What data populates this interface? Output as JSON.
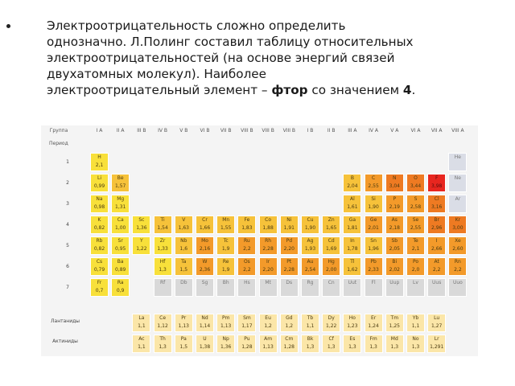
{
  "bullet": {
    "line1": "Электроотрицательность сложно определить",
    "line2": "однозначно. Л.Полинг составил таблицу относительных",
    "line3": "электроотрицательностей (на основе энергий связей",
    "line4": "двухатомных молекул). Наиболее",
    "line5_prefix": "электроотрицательный элемент – ",
    "line5_bold": "фтор",
    "line5_mid": " со значением ",
    "line5_num": "4",
    "line5_end": "."
  },
  "table": {
    "group_label": "Группа",
    "period_label": "Период",
    "columns": [
      "I A",
      "II A",
      "III B",
      "IV B",
      "V B",
      "VI B",
      "VII B",
      "VIII B",
      "VIII B",
      "VIII B",
      "I B",
      "II B",
      "III A",
      "IV A",
      "V A",
      "VI A",
      "VII A",
      "VIII A"
    ],
    "rows": [
      "1",
      "2",
      "3",
      "4",
      "5",
      "6",
      "7"
    ],
    "lanthanides_label": "Лантаниды",
    "actinides_label": "Актиниды"
  },
  "elements": [
    {
      "sym": "H",
      "val": "2,1",
      "color": "c-y"
    },
    {
      "sym": "He",
      "val": "",
      "color": "c-bl"
    },
    {
      "sym": "Li",
      "val": "0,99",
      "color": "c-y"
    },
    {
      "sym": "Be",
      "val": "1,57",
      "color": "c-yo"
    },
    {
      "sym": "B",
      "val": "2,04",
      "color": "c-yo"
    },
    {
      "sym": "C",
      "val": "2,55",
      "color": "c-o"
    },
    {
      "sym": "N",
      "val": "3,04",
      "color": "c-do"
    },
    {
      "sym": "O",
      "val": "3,44",
      "color": "c-do"
    },
    {
      "sym": "F",
      "val": "3,98",
      "color": "c-r"
    },
    {
      "sym": "Ne",
      "val": "",
      "color": "c-bl"
    },
    {
      "sym": "Na",
      "val": "0,98",
      "color": "c-y"
    },
    {
      "sym": "Mg",
      "val": "1,31",
      "color": "c-y"
    },
    {
      "sym": "Al",
      "val": "1,61",
      "color": "c-yo"
    },
    {
      "sym": "Si",
      "val": "1,90",
      "color": "c-yo"
    },
    {
      "sym": "P",
      "val": "2,19",
      "color": "c-o"
    },
    {
      "sym": "S",
      "val": "2,58",
      "color": "c-o"
    },
    {
      "sym": "Cl",
      "val": "3,16",
      "color": "c-do"
    },
    {
      "sym": "Ar",
      "val": "",
      "color": "c-bl"
    },
    {
      "sym": "K",
      "val": "0,82",
      "color": "c-y"
    },
    {
      "sym": "Ca",
      "val": "1,00",
      "color": "c-y"
    },
    {
      "sym": "Sc",
      "val": "1,36",
      "color": "c-y"
    },
    {
      "sym": "Ti",
      "val": "1,54",
      "color": "c-yo"
    },
    {
      "sym": "V",
      "val": "1,63",
      "color": "c-yo"
    },
    {
      "sym": "Cr",
      "val": "1,66",
      "color": "c-yo"
    },
    {
      "sym": "Mn",
      "val": "1,55",
      "color": "c-yo"
    },
    {
      "sym": "Fe",
      "val": "1,83",
      "color": "c-yo"
    },
    {
      "sym": "Co",
      "val": "1,88",
      "color": "c-yo"
    },
    {
      "sym": "Ni",
      "val": "1,91",
      "color": "c-yo"
    },
    {
      "sym": "Cu",
      "val": "1,90",
      "color": "c-yo"
    },
    {
      "sym": "Zn",
      "val": "1,65",
      "color": "c-yo"
    },
    {
      "sym": "Ga",
      "val": "1,81",
      "color": "c-yo"
    },
    {
      "sym": "Ge",
      "val": "2,01",
      "color": "c-o"
    },
    {
      "sym": "As",
      "val": "2,18",
      "color": "c-o"
    },
    {
      "sym": "Se",
      "val": "2,55",
      "color": "c-o"
    },
    {
      "sym": "Br",
      "val": "2,96",
      "color": "c-do"
    },
    {
      "sym": "Kr",
      "val": "3,00",
      "color": "c-do"
    },
    {
      "sym": "Rb",
      "val": "0,82",
      "color": "c-y"
    },
    {
      "sym": "Sr",
      "val": "0,95",
      "color": "c-y"
    },
    {
      "sym": "Y",
      "val": "1,22",
      "color": "c-y"
    },
    {
      "sym": "Zr",
      "val": "1,33",
      "color": "c-y"
    },
    {
      "sym": "Nb",
      "val": "1,6",
      "color": "c-yo"
    },
    {
      "sym": "Mo",
      "val": "2,16",
      "color": "c-o"
    },
    {
      "sym": "Tc",
      "val": "1,9",
      "color": "c-yo"
    },
    {
      "sym": "Ru",
      "val": "2,2",
      "color": "c-o"
    },
    {
      "sym": "Rh",
      "val": "2,28",
      "color": "c-o"
    },
    {
      "sym": "Pd",
      "val": "2,20",
      "color": "c-o"
    },
    {
      "sym": "Ag",
      "val": "1,93",
      "color": "c-yo"
    },
    {
      "sym": "Cd",
      "val": "1,69",
      "color": "c-yo"
    },
    {
      "sym": "In",
      "val": "1,78",
      "color": "c-yo"
    },
    {
      "sym": "Sn",
      "val": "1,96",
      "color": "c-yo"
    },
    {
      "sym": "Sb",
      "val": "2,05",
      "color": "c-o"
    },
    {
      "sym": "Te",
      "val": "2,1",
      "color": "c-o"
    },
    {
      "sym": "I",
      "val": "2,66",
      "color": "c-o"
    },
    {
      "sym": "Xe",
      "val": "2,60",
      "color": "c-o"
    },
    {
      "sym": "Cs",
      "val": "0,79",
      "color": "c-y"
    },
    {
      "sym": "Ba",
      "val": "0,89",
      "color": "c-y"
    },
    {
      "sym": "Hf",
      "val": "1,3",
      "color": "c-y"
    },
    {
      "sym": "Ta",
      "val": "1,5",
      "color": "c-yo"
    },
    {
      "sym": "W",
      "val": "2,36",
      "color": "c-o"
    },
    {
      "sym": "Re",
      "val": "1,9",
      "color": "c-yo"
    },
    {
      "sym": "Os",
      "val": "2,2",
      "color": "c-o"
    },
    {
      "sym": "Ir",
      "val": "2,20",
      "color": "c-o"
    },
    {
      "sym": "Pt",
      "val": "2,28",
      "color": "c-o"
    },
    {
      "sym": "Au",
      "val": "2,54",
      "color": "c-o"
    },
    {
      "sym": "Hg",
      "val": "2,00",
      "color": "c-o"
    },
    {
      "sym": "Tl",
      "val": "1,62",
      "color": "c-yo"
    },
    {
      "sym": "Pb",
      "val": "2,33",
      "color": "c-o"
    },
    {
      "sym": "Bi",
      "val": "2,02",
      "color": "c-o"
    },
    {
      "sym": "Po",
      "val": "2,0",
      "color": "c-o"
    },
    {
      "sym": "At",
      "val": "2,2",
      "color": "c-o"
    },
    {
      "sym": "Rn",
      "val": "2,2",
      "color": "c-o"
    },
    {
      "sym": "Fr",
      "val": "0,7",
      "color": "c-y"
    },
    {
      "sym": "Ra",
      "val": "0,9",
      "color": "c-y"
    },
    {
      "sym": "Rf",
      "val": "",
      "color": "c-lg"
    },
    {
      "sym": "Db",
      "val": "",
      "color": "c-lg"
    },
    {
      "sym": "Sg",
      "val": "",
      "color": "c-lg"
    },
    {
      "sym": "Bh",
      "val": "",
      "color": "c-lg"
    },
    {
      "sym": "Hs",
      "val": "",
      "color": "c-lg"
    },
    {
      "sym": "Mt",
      "val": "",
      "color": "c-lg"
    },
    {
      "sym": "Ds",
      "val": "",
      "color": "c-lg"
    },
    {
      "sym": "Rg",
      "val": "",
      "color": "c-lg"
    },
    {
      "sym": "Cn",
      "val": "",
      "color": "c-lg"
    },
    {
      "sym": "Uut",
      "val": "",
      "color": "c-lg"
    },
    {
      "sym": "Fl",
      "val": "",
      "color": "c-lg"
    },
    {
      "sym": "Uup",
      "val": "",
      "color": "c-lg"
    },
    {
      "sym": "Lv",
      "val": "",
      "color": "c-lg"
    },
    {
      "sym": "Uus",
      "val": "",
      "color": "c-lg"
    },
    {
      "sym": "Uuo",
      "val": "",
      "color": "c-lg"
    },
    {
      "sym": "La",
      "val": "1,1",
      "color": "c-pale"
    },
    {
      "sym": "Ce",
      "val": "1,12",
      "color": "c-pale"
    },
    {
      "sym": "Pr",
      "val": "1,13",
      "color": "c-pale"
    },
    {
      "sym": "Nd",
      "val": "1,14",
      "color": "c-pale"
    },
    {
      "sym": "Pm",
      "val": "1,13",
      "color": "c-pale"
    },
    {
      "sym": "Sm",
      "val": "1,17",
      "color": "c-pale"
    },
    {
      "sym": "Eu",
      "val": "1,2",
      "color": "c-pale"
    },
    {
      "sym": "Gd",
      "val": "1,2",
      "color": "c-pale"
    },
    {
      "sym": "Tb",
      "val": "1,1",
      "color": "c-pale"
    },
    {
      "sym": "Dy",
      "val": "1,22",
      "color": "c-pale"
    },
    {
      "sym": "Ho",
      "val": "1,23",
      "color": "c-pale"
    },
    {
      "sym": "Er",
      "val": "1,24",
      "color": "c-pale"
    },
    {
      "sym": "Tm",
      "val": "1,25",
      "color": "c-pale"
    },
    {
      "sym": "Yb",
      "val": "1,1",
      "color": "c-pale"
    },
    {
      "sym": "Lu",
      "val": "1,27",
      "color": "c-pale"
    },
    {
      "sym": "Ac",
      "val": "1,1",
      "color": "c-pale"
    },
    {
      "sym": "Th",
      "val": "1,3",
      "color": "c-pale"
    },
    {
      "sym": "Pa",
      "val": "1,5",
      "color": "c-pale"
    },
    {
      "sym": "U",
      "val": "1,38",
      "color": "c-pale"
    },
    {
      "sym": "Np",
      "val": "1,36",
      "color": "c-pale"
    },
    {
      "sym": "Pu",
      "val": "1,28",
      "color": "c-pale"
    },
    {
      "sym": "Am",
      "val": "1,13",
      "color": "c-pale"
    },
    {
      "sym": "Cm",
      "val": "1,28",
      "color": "c-pale"
    },
    {
      "sym": "Bk",
      "val": "1,3",
      "color": "c-pale"
    },
    {
      "sym": "Cf",
      "val": "1,3",
      "color": "c-pale"
    },
    {
      "sym": "Es",
      "val": "1,3",
      "color": "c-pale"
    },
    {
      "sym": "Fm",
      "val": "1,3",
      "color": "c-pale"
    },
    {
      "sym": "Md",
      "val": "1,3",
      "color": "c-pale"
    },
    {
      "sym": "No",
      "val": "1,3",
      "color": "c-pale"
    },
    {
      "sym": "Lr",
      "val": "1,291",
      "color": "c-pale"
    }
  ]
}
